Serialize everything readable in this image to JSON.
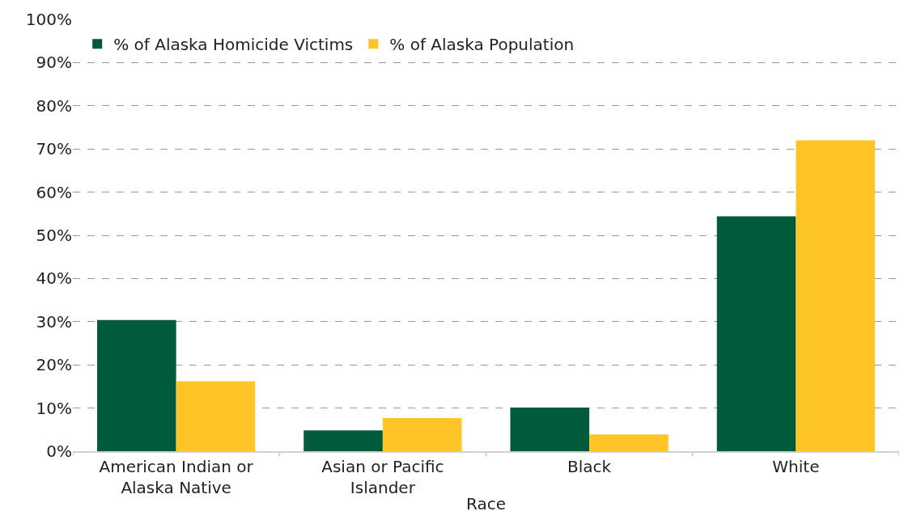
{
  "chart_data": {
    "type": "bar",
    "xlabel": "Race",
    "categories": [
      "American Indian or\nAlaska Native",
      "Asian or Pacific\nIslander",
      "Black",
      "White"
    ],
    "series": [
      {
        "name": "% of Alaska Homicide Victims",
        "color": "#005a3c",
        "values": [
          30.4,
          4.8,
          10.1,
          54.4
        ]
      },
      {
        "name": "% of Alaska Population",
        "color": "#ffc425",
        "values": [
          16.2,
          7.7,
          3.9,
          72.0
        ]
      }
    ],
    "ylim": [
      0,
      100
    ],
    "yticks": [
      {
        "value": 0,
        "label": "0%"
      },
      {
        "value": 10,
        "label": "10%"
      },
      {
        "value": 20,
        "label": "20%"
      },
      {
        "value": 30,
        "label": "30%"
      },
      {
        "value": 40,
        "label": "40%"
      },
      {
        "value": 50,
        "label": "50%"
      },
      {
        "value": 60,
        "label": "60%"
      },
      {
        "value": 70,
        "label": "70%"
      },
      {
        "value": 80,
        "label": "80%"
      },
      {
        "value": 90,
        "label": "90%"
      },
      {
        "value": 100,
        "label": "100%"
      }
    ],
    "grid": "y",
    "legend": "top left"
  }
}
